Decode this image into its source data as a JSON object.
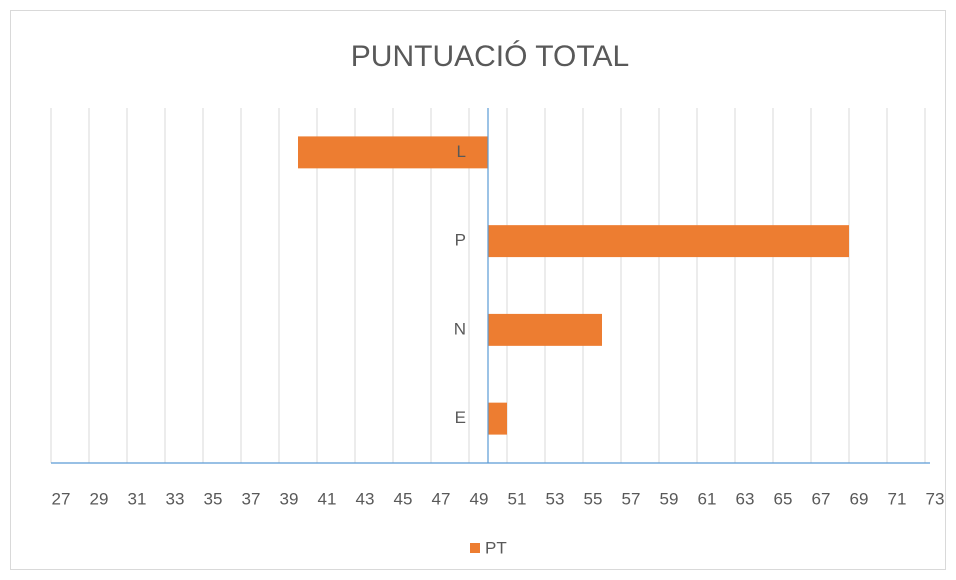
{
  "chart_data": {
    "type": "bar",
    "orientation": "horizontal",
    "title": "PUNTUACIÓ TOTAL",
    "categories": [
      "E",
      "N",
      "P",
      "L"
    ],
    "series": [
      {
        "name": "PT",
        "color": "#ed7d31",
        "values": [
          51,
          56,
          69,
          40
        ]
      }
    ],
    "axis_cross": 50,
    "xlim": [
      27,
      73
    ],
    "xticks": [
      27,
      29,
      31,
      33,
      35,
      37,
      39,
      41,
      43,
      45,
      47,
      49,
      51,
      53,
      55,
      57,
      59,
      61,
      63,
      65,
      67,
      69,
      71,
      73
    ],
    "grid": true,
    "legend": "bottom"
  }
}
